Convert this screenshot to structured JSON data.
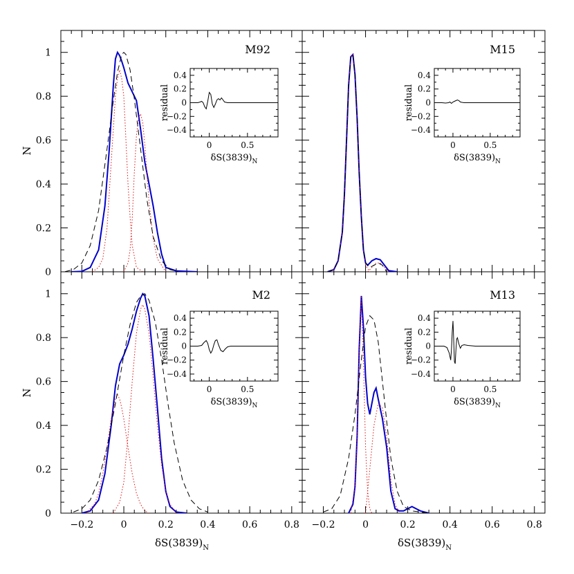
{
  "colors": {
    "kde": "#0000cc",
    "gaussian_component": "#e01010",
    "gaussian_fit": "#000000",
    "residual": "#000000",
    "frame": "#000000"
  },
  "shared": {
    "xlabel": "δS(3839)",
    "xlabel_subscript": "N",
    "ylabel": "N",
    "x_tick_labels": [
      "−0.2",
      "0",
      "0.2",
      "0.4",
      "0.6",
      "0.8"
    ],
    "y_tick_labels": [
      "0",
      "0.2",
      "0.4",
      "0.6",
      "0.8",
      "1"
    ],
    "inset_ylabel": "residual",
    "inset_y_tick_labels": [
      "0.4",
      "0.2",
      "0",
      "−0.2",
      "−0.4"
    ],
    "inset_x_tick_labels": [
      "0",
      "0.5"
    ]
  },
  "chart_data": [
    {
      "type": "line",
      "panel": "M92",
      "title": "M92",
      "xlim": [
        -0.3,
        0.85
      ],
      "ylim": [
        0,
        1.1
      ],
      "series": [
        {
          "kind": "kde",
          "x": [
            -0.25,
            -0.2,
            -0.16,
            -0.12,
            -0.09,
            -0.07,
            -0.05,
            -0.04,
            -0.03,
            -0.02,
            -0.01,
            0,
            0.02,
            0.04,
            0.06,
            0.08,
            0.1,
            0.12,
            0.14,
            0.16,
            0.18,
            0.2,
            0.25,
            0.35
          ],
          "y": [
            0,
            0.002,
            0.02,
            0.1,
            0.3,
            0.55,
            0.85,
            0.97,
            1.0,
            0.985,
            0.96,
            0.93,
            0.86,
            0.82,
            0.78,
            0.65,
            0.5,
            0.4,
            0.3,
            0.18,
            0.08,
            0.02,
            0.004,
            0
          ]
        },
        {
          "kind": "gaussian_component",
          "x": [
            -0.15,
            -0.12,
            -0.1,
            -0.08,
            -0.06,
            -0.04,
            -0.03,
            -0.02,
            -0.01,
            0,
            0.01,
            0.02,
            0.03,
            0.04,
            0.06,
            0.09
          ],
          "y": [
            0,
            0.02,
            0.06,
            0.2,
            0.5,
            0.8,
            0.88,
            0.92,
            0.88,
            0.8,
            0.6,
            0.4,
            0.25,
            0.12,
            0.02,
            0
          ]
        },
        {
          "kind": "gaussian_component",
          "x": [
            0,
            0.02,
            0.03,
            0.04,
            0.05,
            0.06,
            0.07,
            0.08,
            0.09,
            0.1,
            0.11,
            0.12,
            0.14,
            0.16,
            0.2
          ],
          "y": [
            0,
            0.04,
            0.1,
            0.24,
            0.45,
            0.62,
            0.7,
            0.72,
            0.68,
            0.58,
            0.45,
            0.32,
            0.15,
            0.06,
            0
          ]
        },
        {
          "kind": "gaussian_fit",
          "x": [
            -0.28,
            -0.24,
            -0.2,
            -0.16,
            -0.12,
            -0.08,
            -0.05,
            -0.03,
            -0.01,
            0,
            0.01,
            0.03,
            0.05,
            0.08,
            0.11,
            0.14,
            0.18,
            0.22,
            0.26
          ],
          "y": [
            0.001,
            0.01,
            0.04,
            0.12,
            0.28,
            0.56,
            0.78,
            0.91,
            0.99,
            1.0,
            0.99,
            0.92,
            0.79,
            0.56,
            0.33,
            0.16,
            0.05,
            0.01,
            0.001
          ]
        }
      ],
      "inset": {
        "ylabel": "residual",
        "xlabel": "δS(3839)",
        "xlim": [
          -0.25,
          0.9
        ],
        "ylim": [
          -0.5,
          0.5
        ],
        "x": [
          -0.25,
          -0.2,
          -0.15,
          -0.12,
          -0.1,
          -0.08,
          -0.06,
          -0.04,
          -0.02,
          0,
          0.02,
          0.04,
          0.06,
          0.08,
          0.1,
          0.12,
          0.14,
          0.16,
          0.18,
          0.2,
          0.24,
          0.3,
          0.4,
          0.5,
          0.6,
          0.7,
          0.8,
          0.9
        ],
        "y": [
          0,
          0,
          0,
          0.01,
          0.02,
          0.0,
          -0.06,
          -0.09,
          0.02,
          0.15,
          0.12,
          -0.02,
          -0.07,
          -0.02,
          0.04,
          0.06,
          0.04,
          0.07,
          0.04,
          0.01,
          0.0,
          0,
          0,
          0,
          0,
          0,
          0,
          0
        ]
      }
    },
    {
      "type": "line",
      "panel": "M15",
      "title": "M15",
      "xlim": [
        -0.3,
        0.85
      ],
      "ylim": [
        0,
        1.1
      ],
      "series": [
        {
          "kind": "kde",
          "x": [
            -0.18,
            -0.15,
            -0.13,
            -0.11,
            -0.1,
            -0.09,
            -0.08,
            -0.07,
            -0.06,
            -0.05,
            -0.04,
            -0.03,
            -0.02,
            -0.01,
            0,
            0.01,
            0.02,
            0.03,
            0.05,
            0.07,
            0.09,
            0.11,
            0.15
          ],
          "y": [
            0,
            0.01,
            0.05,
            0.18,
            0.35,
            0.6,
            0.85,
            0.98,
            0.99,
            0.9,
            0.7,
            0.45,
            0.25,
            0.1,
            0.04,
            0.03,
            0.04,
            0.05,
            0.06,
            0.055,
            0.03,
            0.005,
            0
          ]
        },
        {
          "kind": "gaussian_component",
          "x": [
            -0.18,
            -0.15,
            -0.13,
            -0.11,
            -0.1,
            -0.09,
            -0.08,
            -0.07,
            -0.06,
            -0.05,
            -0.04,
            -0.03,
            -0.02,
            -0.01,
            0,
            0.02
          ],
          "y": [
            0,
            0.01,
            0.05,
            0.18,
            0.35,
            0.6,
            0.85,
            0.98,
            0.99,
            0.9,
            0.7,
            0.45,
            0.25,
            0.1,
            0.03,
            0
          ]
        },
        {
          "kind": "gaussian_component",
          "x": [
            0.01,
            0.03,
            0.05,
            0.07,
            0.09,
            0.11
          ],
          "y": [
            0,
            0.02,
            0.04,
            0.04,
            0.02,
            0
          ]
        },
        {
          "kind": "gaussian_fit",
          "x": [
            -0.18,
            -0.15,
            -0.13,
            -0.11,
            -0.1,
            -0.09,
            -0.08,
            -0.07,
            -0.06,
            -0.05,
            -0.04,
            -0.03,
            -0.02,
            -0.01,
            0,
            0.02,
            0.04,
            0.06,
            0.08,
            0.1
          ],
          "y": [
            0,
            0.01,
            0.05,
            0.18,
            0.35,
            0.6,
            0.85,
            0.98,
            0.99,
            0.9,
            0.7,
            0.45,
            0.25,
            0.1,
            0.04,
            0.02,
            0.03,
            0.04,
            0.03,
            0
          ]
        }
      ],
      "inset": {
        "ylabel": "residual",
        "xlabel": "δS(3839)",
        "xlim": [
          -0.25,
          0.9
        ],
        "ylim": [
          -0.5,
          0.5
        ],
        "x": [
          -0.25,
          -0.15,
          -0.1,
          -0.06,
          -0.04,
          -0.02,
          0,
          0.02,
          0.04,
          0.06,
          0.08,
          0.1,
          0.12,
          0.15,
          0.2,
          0.3,
          0.5,
          0.7,
          0.9
        ],
        "y": [
          0,
          0,
          -0.005,
          0.0,
          0.01,
          -0.01,
          0.01,
          0.02,
          0.03,
          0.04,
          0.03,
          0.01,
          0.005,
          0,
          0,
          0,
          0,
          0,
          0
        ]
      }
    },
    {
      "type": "line",
      "panel": "M2",
      "title": "M2",
      "xlim": [
        -0.3,
        0.85
      ],
      "ylim": [
        0,
        1.1
      ],
      "series": [
        {
          "kind": "kde",
          "x": [
            -0.2,
            -0.16,
            -0.12,
            -0.09,
            -0.06,
            -0.04,
            -0.02,
            0,
            0.02,
            0.04,
            0.06,
            0.08,
            0.09,
            0.1,
            0.12,
            0.14,
            0.16,
            0.18,
            0.2,
            0.22,
            0.25,
            0.3
          ],
          "y": [
            0,
            0.01,
            0.06,
            0.18,
            0.4,
            0.58,
            0.68,
            0.72,
            0.77,
            0.84,
            0.92,
            0.98,
            1.0,
            0.99,
            0.9,
            0.7,
            0.48,
            0.25,
            0.1,
            0.03,
            0.005,
            0
          ]
        },
        {
          "kind": "gaussian_component",
          "x": [
            -0.18,
            -0.14,
            -0.12,
            -0.1,
            -0.08,
            -0.06,
            -0.04,
            -0.03,
            -0.02,
            -0.01,
            0,
            0.02,
            0.04,
            0.06,
            0.08,
            0.1,
            0.12
          ],
          "y": [
            0,
            0.04,
            0.09,
            0.18,
            0.3,
            0.43,
            0.52,
            0.54,
            0.52,
            0.48,
            0.43,
            0.3,
            0.18,
            0.09,
            0.04,
            0.01,
            0
          ]
        },
        {
          "kind": "gaussian_component",
          "x": [
            -0.05,
            -0.02,
            0,
            0.02,
            0.04,
            0.06,
            0.08,
            0.09,
            0.1,
            0.12,
            0.14,
            0.16,
            0.18,
            0.2,
            0.22,
            0.25
          ],
          "y": [
            0,
            0.05,
            0.14,
            0.35,
            0.6,
            0.82,
            0.93,
            0.95,
            0.93,
            0.82,
            0.62,
            0.4,
            0.22,
            0.1,
            0.04,
            0
          ]
        },
        {
          "kind": "gaussian_fit",
          "x": [
            -0.24,
            -0.2,
            -0.16,
            -0.12,
            -0.08,
            -0.04,
            0,
            0.03,
            0.06,
            0.08,
            0.1,
            0.12,
            0.15,
            0.18,
            0.21,
            0.24,
            0.28,
            0.32,
            0.36,
            0.4
          ],
          "y": [
            0.005,
            0.02,
            0.06,
            0.15,
            0.3,
            0.5,
            0.72,
            0.86,
            0.96,
            0.99,
            1.0,
            0.97,
            0.87,
            0.7,
            0.5,
            0.32,
            0.15,
            0.06,
            0.02,
            0.005
          ]
        }
      ],
      "inset": {
        "ylabel": "residual",
        "xlabel": "δS(3839)",
        "xlim": [
          -0.25,
          0.9
        ],
        "ylim": [
          -0.5,
          0.5
        ],
        "x": [
          -0.25,
          -0.15,
          -0.1,
          -0.07,
          -0.04,
          -0.02,
          0,
          0.02,
          0.04,
          0.06,
          0.08,
          0.1,
          0.12,
          0.15,
          0.18,
          0.21,
          0.24,
          0.28,
          0.35,
          0.5,
          0.7,
          0.9
        ],
        "y": [
          0,
          0,
          0.01,
          0.05,
          0.08,
          0.04,
          -0.05,
          -0.1,
          -0.06,
          0.02,
          0.08,
          0.09,
          0.02,
          -0.06,
          -0.08,
          -0.04,
          -0.01,
          0,
          0,
          0,
          0,
          0
        ]
      }
    },
    {
      "type": "line",
      "panel": "M13",
      "title": "M13",
      "xlim": [
        -0.3,
        0.85
      ],
      "ylim": [
        0,
        1.1
      ],
      "series": [
        {
          "kind": "kde",
          "x": [
            -0.08,
            -0.06,
            -0.05,
            -0.04,
            -0.03,
            -0.02,
            -0.01,
            0,
            0.01,
            0.02,
            0.03,
            0.04,
            0.05,
            0.06,
            0.08,
            0.1,
            0.12,
            0.14,
            0.16,
            0.18,
            0.22,
            0.26,
            0.3
          ],
          "y": [
            0,
            0.04,
            0.12,
            0.35,
            0.75,
            0.99,
            0.85,
            0.62,
            0.5,
            0.45,
            0.5,
            0.55,
            0.57,
            0.52,
            0.43,
            0.3,
            0.1,
            0.02,
            0.01,
            0.01,
            0.03,
            0.01,
            0
          ]
        },
        {
          "kind": "gaussian_component",
          "x": [
            -0.07,
            -0.05,
            -0.04,
            -0.03,
            -0.02,
            -0.01,
            0,
            0.01,
            0.02,
            0.03
          ],
          "y": [
            0,
            0.12,
            0.35,
            0.75,
            0.99,
            0.7,
            0.3,
            0.1,
            0.02,
            0
          ]
        },
        {
          "kind": "gaussian_component",
          "x": [
            0,
            0.02,
            0.04,
            0.06,
            0.08,
            0.1,
            0.12,
            0.14,
            0.16
          ],
          "y": [
            0,
            0.2,
            0.4,
            0.5,
            0.48,
            0.35,
            0.15,
            0.04,
            0
          ]
        },
        {
          "kind": "gaussian_fit",
          "x": [
            -0.2,
            -0.16,
            -0.12,
            -0.08,
            -0.05,
            -0.02,
            0,
            0.02,
            0.04,
            0.06,
            0.08,
            0.1,
            0.12,
            0.15,
            0.18,
            0.22,
            0.26,
            0.3
          ],
          "y": [
            0.005,
            0.02,
            0.08,
            0.25,
            0.45,
            0.7,
            0.85,
            0.9,
            0.88,
            0.78,
            0.6,
            0.42,
            0.25,
            0.1,
            0.03,
            0.01,
            0.005,
            0
          ]
        }
      ],
      "inset": {
        "ylabel": "residual",
        "xlabel": "δS(3839)",
        "xlim": [
          -0.25,
          0.9
        ],
        "ylim": [
          -0.5,
          0.5
        ],
        "x": [
          -0.25,
          -0.12,
          -0.08,
          -0.05,
          -0.03,
          -0.02,
          -0.01,
          0,
          0.01,
          0.02,
          0.03,
          0.04,
          0.05,
          0.06,
          0.08,
          0.1,
          0.12,
          0.15,
          0.2,
          0.3,
          0.5,
          0.7,
          0.9
        ],
        "y": [
          0,
          0,
          -0.02,
          -0.1,
          -0.2,
          -0.05,
          0.2,
          0.36,
          0.1,
          -0.22,
          -0.25,
          -0.05,
          0.1,
          0.12,
          0.03,
          -0.03,
          0.01,
          0.02,
          0.01,
          0,
          0,
          0,
          0
        ]
      }
    }
  ]
}
